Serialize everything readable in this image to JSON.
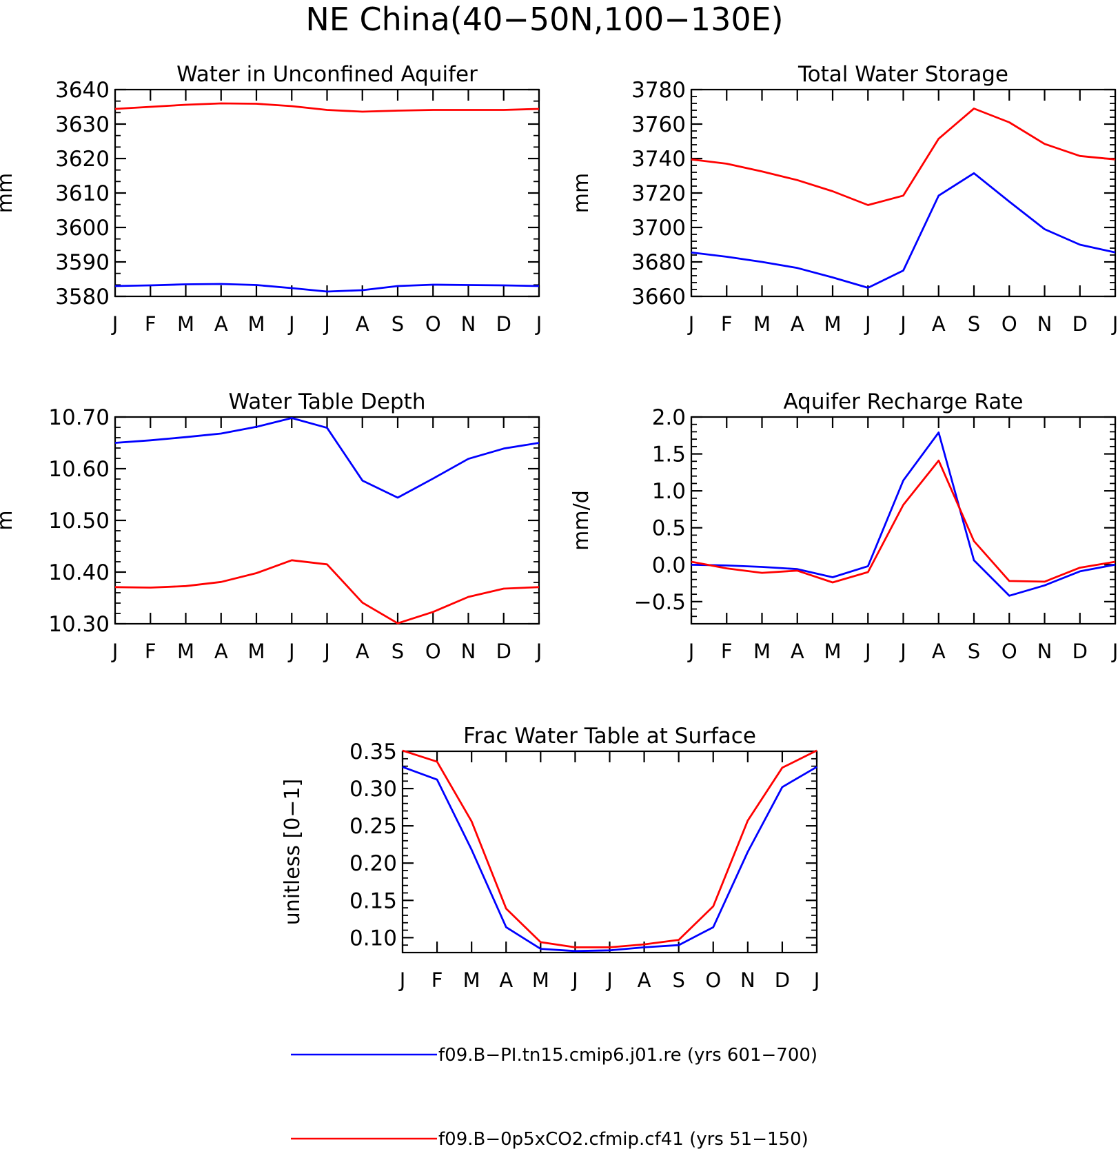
{
  "figure": {
    "title": "NE China(40−50N,100−130E)"
  },
  "legend": [
    {
      "label": "f09.B−PI.tn15.cmip6.j01.re (yrs 601−700)",
      "color": "#0000ff"
    },
    {
      "label": "f09.B−0p5xCO2.cfmip.cf41 (yrs 51−150)",
      "color": "#ff0000"
    }
  ],
  "colors": {
    "series_1": "#0000ff",
    "series_2": "#ff0000",
    "axis": "#000000"
  },
  "chart_data": [
    {
      "type": "line",
      "title": "Water in Unconfined Aquifer",
      "ylabel": "mm",
      "categories": [
        "J",
        "F",
        "M",
        "A",
        "M",
        "J",
        "J",
        "A",
        "S",
        "O",
        "N",
        "D",
        "J"
      ],
      "ylim": [
        3580,
        3640
      ],
      "yticks": [
        3580,
        3590,
        3600,
        3610,
        3620,
        3630,
        3640
      ],
      "ytick_labels": [
        "3580",
        "3590",
        "3600",
        "3610",
        "3620",
        "3630",
        "3640"
      ],
      "yminor": 2,
      "series": [
        {
          "color": "#0000ff",
          "values": [
            3583.0,
            3583.2,
            3583.5,
            3583.6,
            3583.3,
            3582.4,
            3581.4,
            3581.8,
            3583.0,
            3583.4,
            3583.3,
            3583.2,
            3583.0
          ]
        },
        {
          "color": "#ff0000",
          "values": [
            3634.4,
            3635.0,
            3635.6,
            3636.0,
            3635.9,
            3635.2,
            3634.1,
            3633.6,
            3633.9,
            3634.1,
            3634.1,
            3634.1,
            3634.4
          ]
        }
      ]
    },
    {
      "type": "line",
      "title": "Total Water Storage",
      "ylabel": "mm",
      "categories": [
        "J",
        "F",
        "M",
        "A",
        "M",
        "J",
        "J",
        "A",
        "S",
        "O",
        "N",
        "D",
        "J"
      ],
      "ylim": [
        3660,
        3780
      ],
      "yticks": [
        3660,
        3680,
        3700,
        3720,
        3740,
        3760,
        3780
      ],
      "ytick_labels": [
        "3660",
        "3680",
        "3700",
        "3720",
        "3740",
        "3760",
        "3780"
      ],
      "yminor": 4,
      "series": [
        {
          "color": "#0000ff",
          "values": [
            3685.5,
            3683.0,
            3680.0,
            3676.5,
            3671.0,
            3665.0,
            3675.0,
            3718.5,
            3731.5,
            3715.0,
            3699.0,
            3690.0,
            3685.5
          ]
        },
        {
          "color": "#ff0000",
          "values": [
            3739.5,
            3737.0,
            3732.5,
            3727.5,
            3721.0,
            3713.0,
            3718.5,
            3751.5,
            3769.0,
            3761.0,
            3748.5,
            3741.5,
            3739.5
          ]
        }
      ]
    },
    {
      "type": "line",
      "title": "Water Table Depth",
      "ylabel": "m",
      "categories": [
        "J",
        "F",
        "M",
        "A",
        "M",
        "J",
        "J",
        "A",
        "S",
        "O",
        "N",
        "D",
        "J"
      ],
      "ylim": [
        10.3,
        10.7
      ],
      "yticks": [
        10.3,
        10.4,
        10.5,
        10.6,
        10.7
      ],
      "ytick_labels": [
        "10.30",
        "10.40",
        "10.50",
        "10.60",
        "10.70"
      ],
      "yminor": 4,
      "series": [
        {
          "color": "#0000ff",
          "values": [
            10.65,
            10.655,
            10.661,
            10.668,
            10.681,
            10.698,
            10.679,
            10.577,
            10.544,
            10.581,
            10.619,
            10.639,
            10.65
          ]
        },
        {
          "color": "#ff0000",
          "values": [
            10.371,
            10.37,
            10.373,
            10.381,
            10.398,
            10.423,
            10.415,
            10.341,
            10.301,
            10.323,
            10.352,
            10.368,
            10.371
          ]
        }
      ]
    },
    {
      "type": "line",
      "title": "Aquifer Recharge Rate",
      "ylabel": "mm/d",
      "categories": [
        "J",
        "F",
        "M",
        "A",
        "M",
        "J",
        "J",
        "A",
        "S",
        "O",
        "N",
        "D",
        "J"
      ],
      "ylim": [
        -0.8,
        2.0
      ],
      "yticks": [
        -0.5,
        0.0,
        0.5,
        1.0,
        1.5,
        2.0
      ],
      "ytick_labels": [
        "−0.5",
        "0.0",
        "0.5",
        "1.0",
        "1.5",
        "2.0"
      ],
      "yminor": 4,
      "series": [
        {
          "color": "#0000ff",
          "values": [
            0.0,
            -0.01,
            -0.03,
            -0.06,
            -0.17,
            -0.02,
            1.14,
            1.79,
            0.06,
            -0.42,
            -0.28,
            -0.09,
            0.0
          ]
        },
        {
          "color": "#ff0000",
          "values": [
            0.04,
            -0.05,
            -0.11,
            -0.08,
            -0.24,
            -0.1,
            0.81,
            1.41,
            0.32,
            -0.22,
            -0.23,
            -0.04,
            0.04
          ]
        }
      ]
    },
    {
      "type": "line",
      "title": "Frac Water Table at Surface",
      "ylabel": "unitless [0−1]",
      "categories": [
        "J",
        "F",
        "M",
        "A",
        "M",
        "J",
        "J",
        "A",
        "S",
        "O",
        "N",
        "D",
        "J"
      ],
      "ylim": [
        0.08,
        0.35
      ],
      "yticks": [
        0.1,
        0.15,
        0.2,
        0.25,
        0.3,
        0.35
      ],
      "ytick_labels": [
        "0.10",
        "0.15",
        "0.20",
        "0.25",
        "0.30",
        "0.35"
      ],
      "yminor": 4,
      "series": [
        {
          "color": "#0000ff",
          "values": [
            0.329,
            0.312,
            0.218,
            0.114,
            0.085,
            0.082,
            0.083,
            0.087,
            0.09,
            0.114,
            0.215,
            0.302,
            0.329
          ]
        },
        {
          "color": "#ff0000",
          "values": [
            0.351,
            0.336,
            0.256,
            0.139,
            0.094,
            0.087,
            0.087,
            0.091,
            0.097,
            0.142,
            0.257,
            0.328,
            0.351
          ]
        }
      ]
    }
  ]
}
